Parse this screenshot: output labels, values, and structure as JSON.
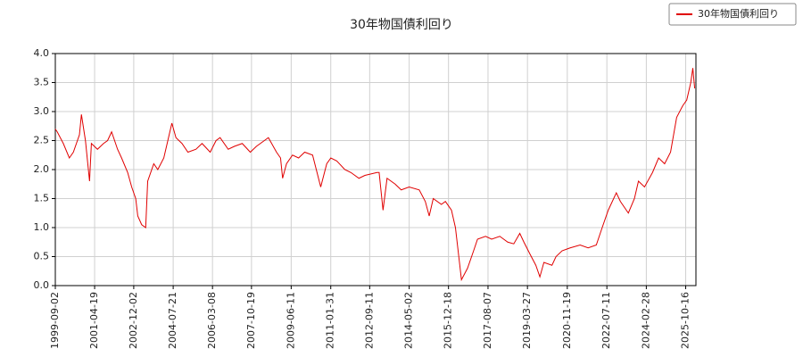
{
  "chart_data": {
    "type": "line",
    "title": "30年物国債利回り",
    "x": [
      "1999-09",
      "1999-10",
      "2000-01",
      "2000-04",
      "2000-06",
      "2000-09",
      "2000-10",
      "2000-12",
      "2001-02",
      "2001-03",
      "2001-06",
      "2001-09",
      "2001-11",
      "2002-01",
      "2002-04",
      "2002-06",
      "2002-09",
      "2002-11",
      "2003-01",
      "2003-02",
      "2003-04",
      "2003-06",
      "2003-07",
      "2003-10",
      "2003-12",
      "2004-03",
      "2004-05",
      "2004-07",
      "2004-09",
      "2004-12",
      "2005-03",
      "2005-07",
      "2005-10",
      "2006-02",
      "2006-05",
      "2006-07",
      "2006-11",
      "2007-02",
      "2007-06",
      "2007-10",
      "2008-01",
      "2008-05",
      "2008-07",
      "2008-11",
      "2009-01",
      "2009-02",
      "2009-04",
      "2009-07",
      "2009-10",
      "2010-01",
      "2010-05",
      "2010-09",
      "2010-12",
      "2011-02",
      "2011-05",
      "2011-09",
      "2011-12",
      "2012-04",
      "2012-07",
      "2013-01",
      "2013-02",
      "2013-04",
      "2013-06",
      "2013-10",
      "2014-01",
      "2014-05",
      "2014-10",
      "2015-01",
      "2015-03",
      "2015-05",
      "2015-09",
      "2015-11",
      "2016-02",
      "2016-04",
      "2016-06",
      "2016-07",
      "2016-10",
      "2017-01",
      "2017-03",
      "2017-07",
      "2017-10",
      "2018-02",
      "2018-06",
      "2018-09",
      "2018-12",
      "2019-02",
      "2019-05",
      "2019-08",
      "2019-10",
      "2019-12",
      "2020-04",
      "2020-06",
      "2020-09",
      "2021-01",
      "2021-06",
      "2021-10",
      "2022-02",
      "2022-05",
      "2022-08",
      "2022-12",
      "2023-02",
      "2023-06",
      "2023-09",
      "2023-11",
      "2024-02",
      "2024-06",
      "2024-09",
      "2024-12",
      "2025-03",
      "2025-06",
      "2025-09",
      "2025-11",
      "2026-01",
      "2026-02",
      "2026-03"
    ],
    "series": [
      {
        "name": "30年物国債利回り",
        "color": "#e00000",
        "values": [
          2.7,
          2.65,
          2.45,
          2.2,
          2.3,
          2.6,
          2.95,
          2.5,
          1.8,
          2.45,
          2.35,
          2.45,
          2.5,
          2.65,
          2.35,
          2.2,
          1.95,
          1.7,
          1.5,
          1.2,
          1.05,
          1.0,
          1.8,
          2.1,
          2.0,
          2.2,
          2.5,
          2.8,
          2.55,
          2.45,
          2.3,
          2.35,
          2.45,
          2.3,
          2.5,
          2.55,
          2.35,
          2.4,
          2.45,
          2.3,
          2.4,
          2.5,
          2.55,
          2.3,
          2.2,
          1.85,
          2.1,
          2.25,
          2.2,
          2.3,
          2.25,
          1.7,
          2.1,
          2.2,
          2.15,
          2.0,
          1.95,
          1.85,
          1.9,
          1.95,
          1.95,
          1.3,
          1.85,
          1.75,
          1.65,
          1.7,
          1.65,
          1.45,
          1.2,
          1.5,
          1.4,
          1.45,
          1.3,
          1.0,
          0.4,
          0.1,
          0.3,
          0.6,
          0.8,
          0.85,
          0.8,
          0.85,
          0.75,
          0.72,
          0.9,
          0.75,
          0.55,
          0.35,
          0.15,
          0.4,
          0.35,
          0.5,
          0.6,
          0.65,
          0.7,
          0.65,
          0.7,
          1.0,
          1.3,
          1.6,
          1.45,
          1.25,
          1.5,
          1.8,
          1.7,
          1.95,
          2.2,
          2.1,
          2.3,
          2.9,
          3.1,
          3.2,
          3.5,
          3.75,
          3.4
        ]
      }
    ],
    "xlim": [
      "1999-09-02",
      "2026-03-20"
    ],
    "xticks": [
      "1999-09-02",
      "2001-04-19",
      "2002-12-02",
      "2004-07-21",
      "2006-03-08",
      "2007-10-19",
      "2009-06-11",
      "2011-01-31",
      "2012-09-11",
      "2014-05-02",
      "2015-12-18",
      "2017-08-07",
      "2019-03-27",
      "2020-11-19",
      "2022-07-11",
      "2024-02-28",
      "2025-10-16"
    ],
    "ylim": [
      0,
      4
    ],
    "yticks": [
      {
        "value": 0,
        "label": "0.0"
      },
      0.5,
      {
        "value": 1,
        "label": "1.0"
      },
      1.5,
      {
        "value": 2,
        "label": "2.0"
      },
      2.5,
      {
        "value": 3,
        "label": "3.0"
      },
      3.5,
      {
        "value": 4,
        "label": "4.0"
      }
    ],
    "grid": true,
    "legend": "upper right"
  }
}
